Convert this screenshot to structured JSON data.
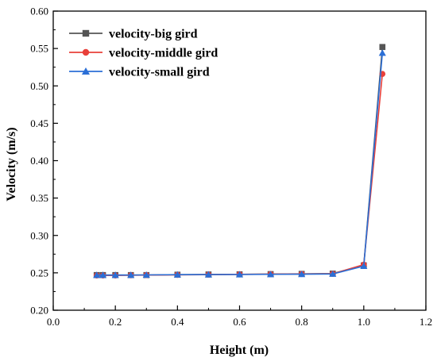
{
  "chart_data": {
    "type": "line",
    "xlabel": "Height (m)",
    "ylabel": "Velocity (m/s)",
    "xlim": [
      0.0,
      1.2
    ],
    "ylim": [
      0.2,
      0.6
    ],
    "xticks": [
      "0.0",
      "0.2",
      "0.4",
      "0.6",
      "0.8",
      "1.0",
      "1.2"
    ],
    "yticks": [
      "0.20",
      "0.25",
      "0.30",
      "0.35",
      "0.40",
      "0.45",
      "0.50",
      "0.55",
      "0.60"
    ],
    "grid": false,
    "legend_position": "top-left",
    "x": [
      0.14,
      0.16,
      0.2,
      0.25,
      0.3,
      0.4,
      0.5,
      0.6,
      0.7,
      0.8,
      0.9,
      1.0,
      1.06
    ],
    "series": [
      {
        "name": "velocity-big gird",
        "marker": "square",
        "color": "#555555",
        "values": [
          0.247,
          0.247,
          0.247,
          0.247,
          0.247,
          0.2475,
          0.2478,
          0.248,
          0.2483,
          0.2486,
          0.249,
          0.26,
          0.552
        ]
      },
      {
        "name": "velocity-middle gird",
        "marker": "circle",
        "color": "#e8403a",
        "values": [
          0.2465,
          0.2465,
          0.2465,
          0.2468,
          0.247,
          0.2473,
          0.2476,
          0.2479,
          0.2482,
          0.2485,
          0.2487,
          0.261,
          0.516
        ]
      },
      {
        "name": "velocity-small gird",
        "marker": "triangle",
        "color": "#2b6fd6",
        "values": [
          0.247,
          0.247,
          0.247,
          0.247,
          0.2472,
          0.2475,
          0.2477,
          0.2478,
          0.248,
          0.2482,
          0.2485,
          0.259,
          0.544
        ]
      }
    ]
  }
}
